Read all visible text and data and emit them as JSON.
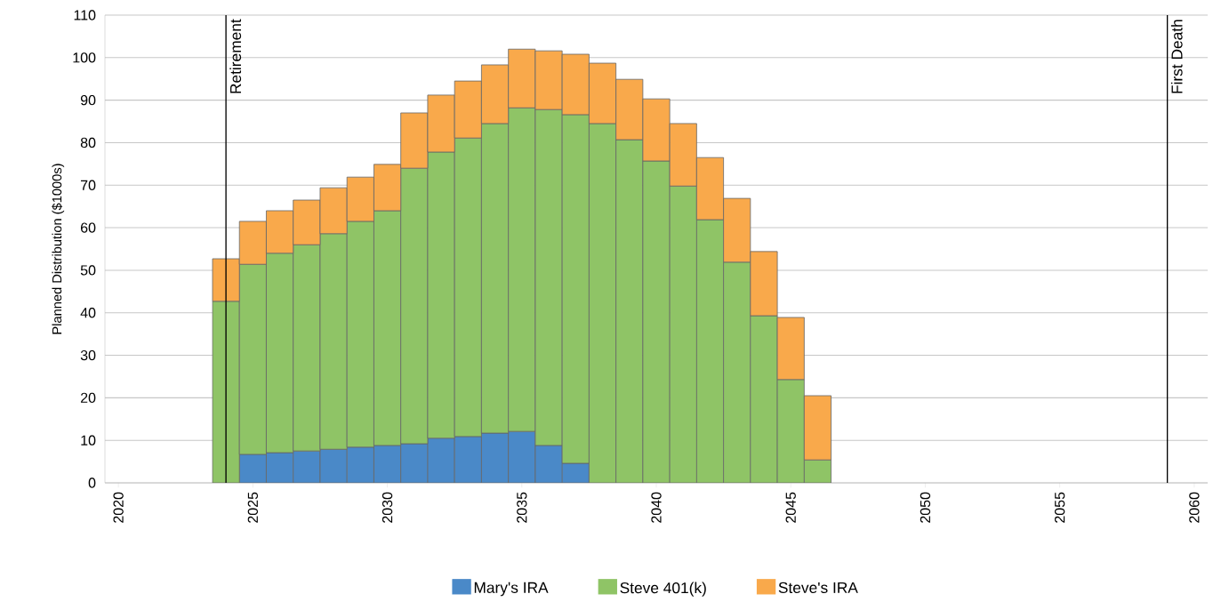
{
  "chart_data": {
    "type": "bar",
    "stacked": true,
    "ylabel": "Planned Distribution ($1000s)",
    "x": [
      2024,
      2025,
      2026,
      2027,
      2028,
      2029,
      2030,
      2031,
      2032,
      2033,
      2034,
      2035,
      2036,
      2037,
      2038,
      2039,
      2040,
      2041,
      2042,
      2043,
      2044,
      2045,
      2046
    ],
    "series": [
      {
        "name": "Mary's IRA",
        "color": "#4a89c8",
        "values": [
          null,
          6.7,
          7.1,
          7.5,
          7.9,
          8.4,
          8.8,
          9.2,
          10.5,
          10.9,
          11.7,
          12.1,
          8.8,
          4.6,
          null,
          null,
          null,
          null,
          null,
          null,
          null,
          null,
          null
        ]
      },
      {
        "name": "Steve 401(k)",
        "color": "#8fc466",
        "values": [
          42.7,
          44.7,
          46.9,
          48.5,
          50.7,
          53.1,
          55.2,
          64.8,
          67.3,
          70.2,
          72.8,
          76.1,
          79.0,
          82.0,
          84.5,
          80.7,
          75.7,
          69.8,
          61.9,
          51.9,
          39.3,
          24.3,
          5.4
        ]
      },
      {
        "name": "Steve's IRA",
        "color": "#f9a94b",
        "values": [
          10.0,
          10.1,
          10.0,
          10.5,
          10.8,
          10.4,
          10.9,
          13.0,
          13.4,
          13.4,
          13.8,
          13.8,
          13.8,
          14.2,
          14.2,
          14.2,
          14.6,
          14.7,
          14.6,
          15.0,
          15.1,
          14.6,
          15.1
        ]
      }
    ],
    "xlim": [
      2019.5,
      2060.5
    ],
    "xticks": [
      2020,
      2025,
      2030,
      2035,
      2040,
      2045,
      2050,
      2055,
      2060
    ],
    "ylim": [
      0,
      110
    ],
    "yticks": [
      0,
      10,
      20,
      30,
      40,
      50,
      60,
      70,
      80,
      90,
      100,
      110
    ],
    "grid": "y",
    "legend": "bottom",
    "ref_lines": [
      {
        "axis": "x",
        "value": 2024,
        "label": "Retirement"
      },
      {
        "axis": "x",
        "value": 2059,
        "label": "First Death"
      }
    ]
  }
}
